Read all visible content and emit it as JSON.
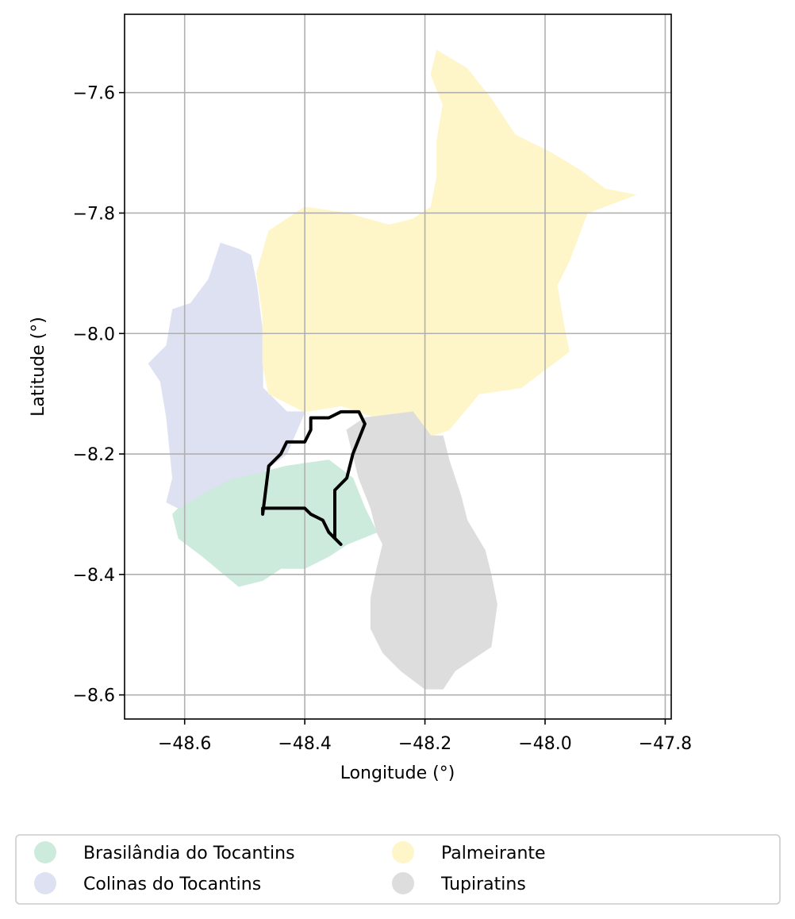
{
  "chart_data": {
    "type": "map",
    "xlabel": "Longitude (°)",
    "ylabel": "Latitude (°)",
    "xlim": [
      -48.7,
      -47.79
    ],
    "ylim": [
      -8.64,
      -7.47
    ],
    "x_ticks": [
      -48.6,
      -48.4,
      -48.2,
      -48.0,
      -47.8
    ],
    "x_tick_labels": [
      "−48.6",
      "−48.4",
      "−48.2",
      "−48.0",
      "−47.8"
    ],
    "y_ticks": [
      -7.6,
      -7.8,
      -8.0,
      -8.2,
      -8.4,
      -8.6
    ],
    "y_tick_labels": [
      "−7.6",
      "−7.8",
      "−8.0",
      "−8.2",
      "−8.4",
      "−8.6"
    ],
    "grid": true,
    "legend_position": "bottom",
    "regions": [
      {
        "name": "Brasilândia do Tocantins",
        "color": "#cdebdc",
        "coords": [
          [
            -48.43,
            -8.22
          ],
          [
            -48.36,
            -8.21
          ],
          [
            -48.32,
            -8.24
          ],
          [
            -48.3,
            -8.29
          ],
          [
            -48.28,
            -8.33
          ],
          [
            -48.33,
            -8.35
          ],
          [
            -48.36,
            -8.37
          ],
          [
            -48.4,
            -8.39
          ],
          [
            -48.44,
            -8.39
          ],
          [
            -48.47,
            -8.41
          ],
          [
            -48.51,
            -8.42
          ],
          [
            -48.57,
            -8.37
          ],
          [
            -48.61,
            -8.34
          ],
          [
            -48.62,
            -8.3
          ],
          [
            -48.6,
            -8.28
          ],
          [
            -48.56,
            -8.26
          ],
          [
            -48.52,
            -8.24
          ],
          [
            -48.47,
            -8.23
          ]
        ]
      },
      {
        "name": "Colinas do Tocantins",
        "color": "#dde1f1",
        "coords": [
          [
            -48.54,
            -7.85
          ],
          [
            -48.51,
            -7.86
          ],
          [
            -48.49,
            -7.87
          ],
          [
            -48.48,
            -7.92
          ],
          [
            -48.47,
            -8.0
          ],
          [
            -48.47,
            -8.09
          ],
          [
            -48.43,
            -8.13
          ],
          [
            -48.4,
            -8.13
          ],
          [
            -48.43,
            -8.2
          ],
          [
            -48.47,
            -8.23
          ],
          [
            -48.52,
            -8.24
          ],
          [
            -48.56,
            -8.26
          ],
          [
            -48.61,
            -8.29
          ],
          [
            -48.63,
            -8.28
          ],
          [
            -48.62,
            -8.24
          ],
          [
            -48.63,
            -8.14
          ],
          [
            -48.64,
            -8.08
          ],
          [
            -48.66,
            -8.05
          ],
          [
            -48.63,
            -8.02
          ],
          [
            -48.62,
            -7.96
          ],
          [
            -48.59,
            -7.95
          ],
          [
            -48.56,
            -7.91
          ],
          [
            -48.55,
            -7.88
          ]
        ]
      },
      {
        "name": "Palmeirante",
        "color": "#fef5c8",
        "coords": [
          [
            -48.18,
            -7.53
          ],
          [
            -48.13,
            -7.56
          ],
          [
            -48.09,
            -7.61
          ],
          [
            -48.05,
            -7.67
          ],
          [
            -47.99,
            -7.7
          ],
          [
            -47.94,
            -7.73
          ],
          [
            -47.9,
            -7.76
          ],
          [
            -47.85,
            -7.77
          ],
          [
            -47.93,
            -7.8
          ],
          [
            -47.96,
            -7.88
          ],
          [
            -47.98,
            -7.92
          ],
          [
            -47.97,
            -7.98
          ],
          [
            -47.96,
            -8.03
          ],
          [
            -48.04,
            -8.09
          ],
          [
            -48.11,
            -8.1
          ],
          [
            -48.16,
            -8.16
          ],
          [
            -48.19,
            -8.17
          ],
          [
            -48.22,
            -8.13
          ],
          [
            -48.28,
            -8.14
          ],
          [
            -48.34,
            -8.12
          ],
          [
            -48.4,
            -8.13
          ],
          [
            -48.46,
            -8.1
          ],
          [
            -48.47,
            -8.05
          ],
          [
            -48.47,
            -7.97
          ],
          [
            -48.48,
            -7.9
          ],
          [
            -48.46,
            -7.83
          ],
          [
            -48.4,
            -7.79
          ],
          [
            -48.33,
            -7.8
          ],
          [
            -48.26,
            -7.82
          ],
          [
            -48.22,
            -7.81
          ],
          [
            -48.19,
            -7.79
          ],
          [
            -48.18,
            -7.74
          ],
          [
            -48.18,
            -7.68
          ],
          [
            -48.17,
            -7.62
          ],
          [
            -48.19,
            -7.57
          ]
        ]
      },
      {
        "name": "Tupiratins",
        "color": "#dddddd",
        "coords": [
          [
            -48.3,
            -8.14
          ],
          [
            -48.22,
            -8.13
          ],
          [
            -48.19,
            -8.17
          ],
          [
            -48.17,
            -8.17
          ],
          [
            -48.16,
            -8.21
          ],
          [
            -48.14,
            -8.27
          ],
          [
            -48.13,
            -8.31
          ],
          [
            -48.1,
            -8.36
          ],
          [
            -48.09,
            -8.4
          ],
          [
            -48.08,
            -8.45
          ],
          [
            -48.09,
            -8.52
          ],
          [
            -48.12,
            -8.54
          ],
          [
            -48.15,
            -8.56
          ],
          [
            -48.17,
            -8.59
          ],
          [
            -48.2,
            -8.59
          ],
          [
            -48.24,
            -8.56
          ],
          [
            -48.27,
            -8.53
          ],
          [
            -48.29,
            -8.49
          ],
          [
            -48.29,
            -8.44
          ],
          [
            -48.28,
            -8.39
          ],
          [
            -48.27,
            -8.35
          ],
          [
            -48.28,
            -8.33
          ],
          [
            -48.29,
            -8.29
          ],
          [
            -48.31,
            -8.24
          ],
          [
            -48.32,
            -8.2
          ],
          [
            -48.33,
            -8.16
          ]
        ]
      }
    ],
    "outline": {
      "color": "#000000",
      "coords": [
        [
          -48.39,
          -8.14
        ],
        [
          -48.36,
          -8.14
        ],
        [
          -48.34,
          -8.13
        ],
        [
          -48.31,
          -8.13
        ],
        [
          -48.3,
          -8.15
        ],
        [
          -48.32,
          -8.2
        ],
        [
          -48.33,
          -8.24
        ],
        [
          -48.35,
          -8.26
        ],
        [
          -48.35,
          -8.34
        ],
        [
          -48.34,
          -8.35
        ],
        [
          -48.36,
          -8.33
        ],
        [
          -48.37,
          -8.31
        ],
        [
          -48.39,
          -8.3
        ],
        [
          -48.4,
          -8.29
        ],
        [
          -48.42,
          -8.29
        ],
        [
          -48.44,
          -8.29
        ],
        [
          -48.47,
          -8.29
        ],
        [
          -48.47,
          -8.3
        ],
        [
          -48.46,
          -8.22
        ],
        [
          -48.44,
          -8.2
        ],
        [
          -48.43,
          -8.18
        ],
        [
          -48.4,
          -8.18
        ],
        [
          -48.39,
          -8.16
        ],
        [
          -48.39,
          -8.14
        ]
      ]
    }
  }
}
